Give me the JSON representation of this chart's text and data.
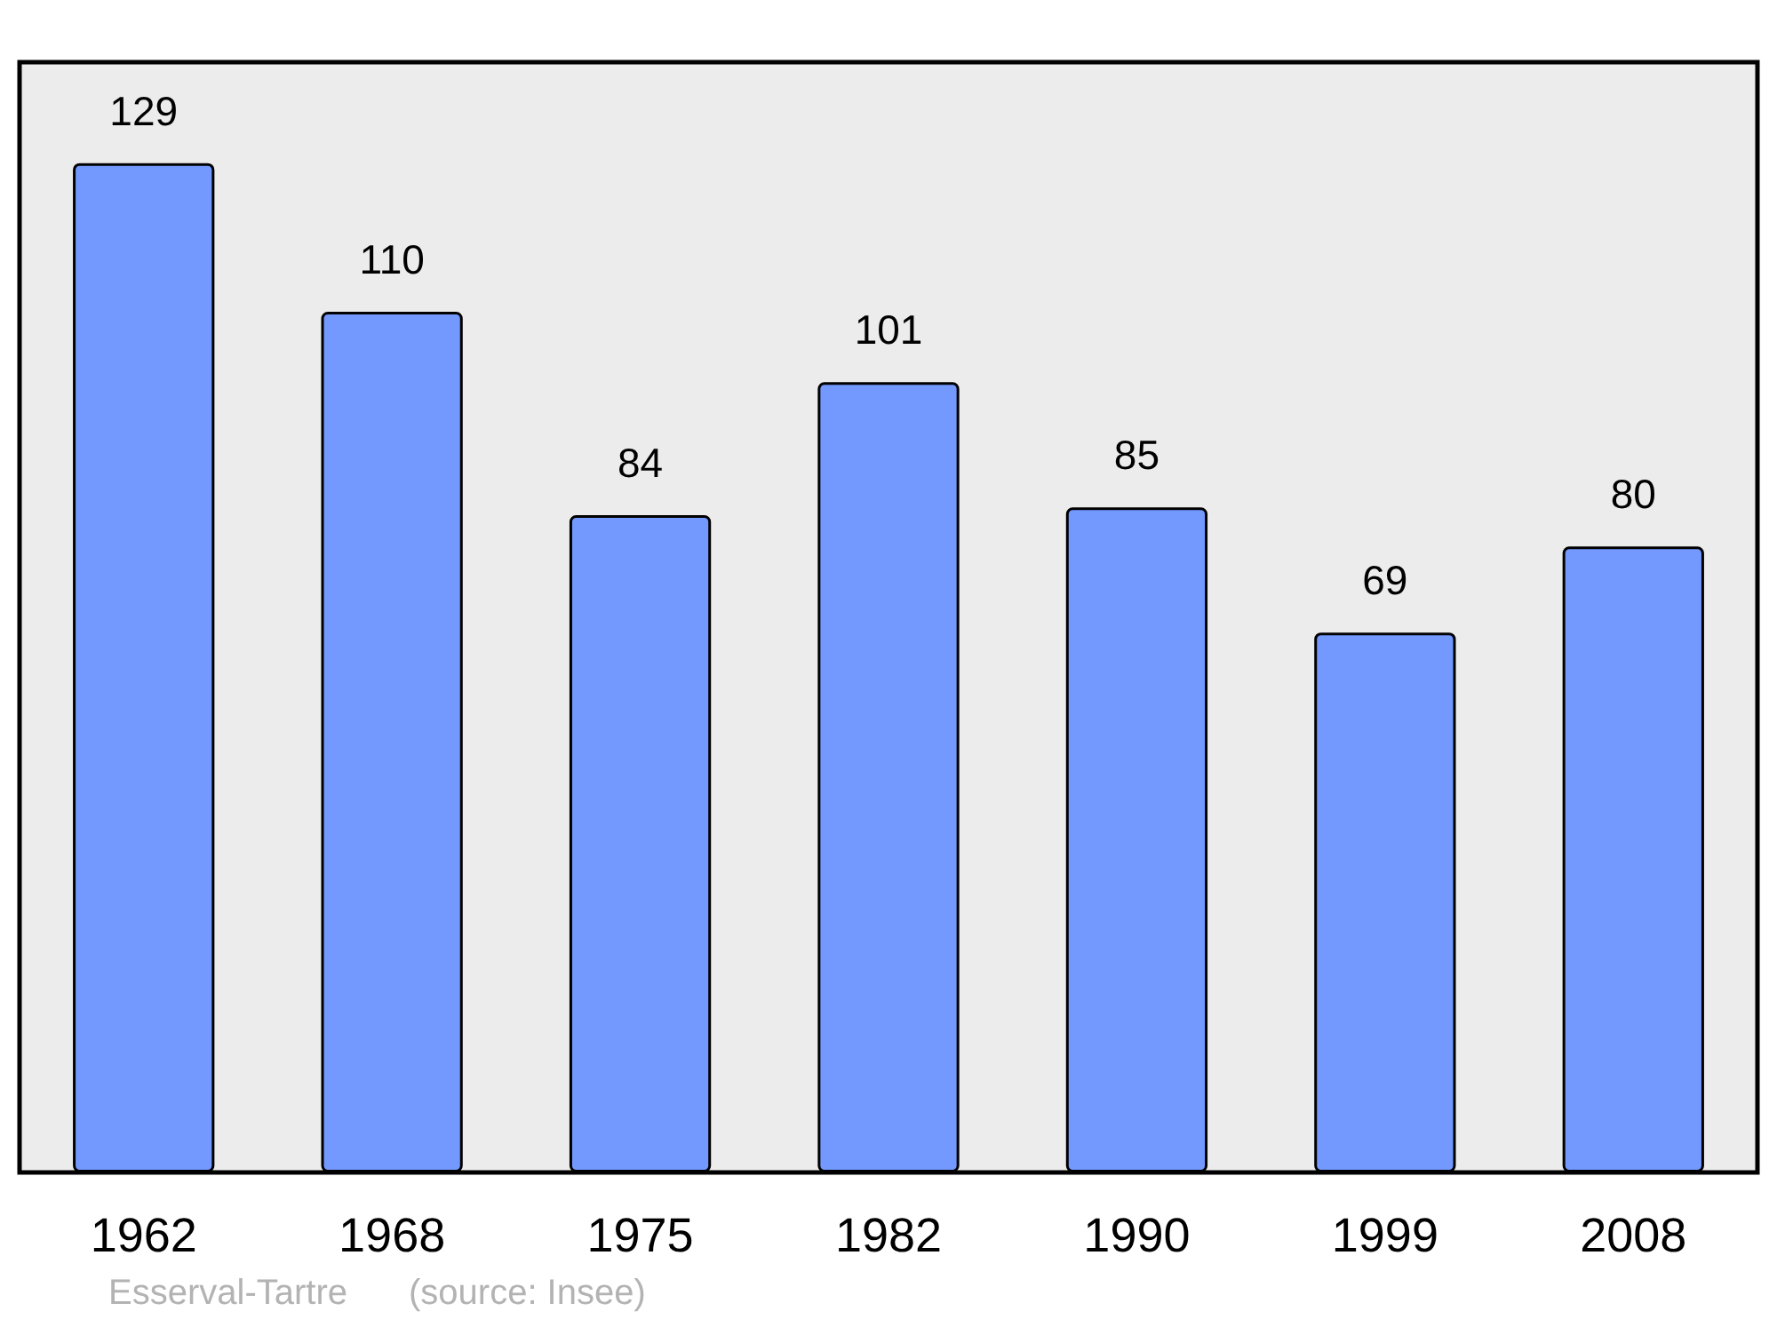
{
  "chart_data": {
    "type": "bar",
    "categories": [
      "1962",
      "1968",
      "1975",
      "1982",
      "1990",
      "1999",
      "2008"
    ],
    "values": [
      129,
      110,
      84,
      101,
      85,
      69,
      80
    ],
    "color": "#7399ff",
    "data_labels": true,
    "annotations": [
      "Esserval-Tartre",
      "(source: Insee)"
    ]
  }
}
